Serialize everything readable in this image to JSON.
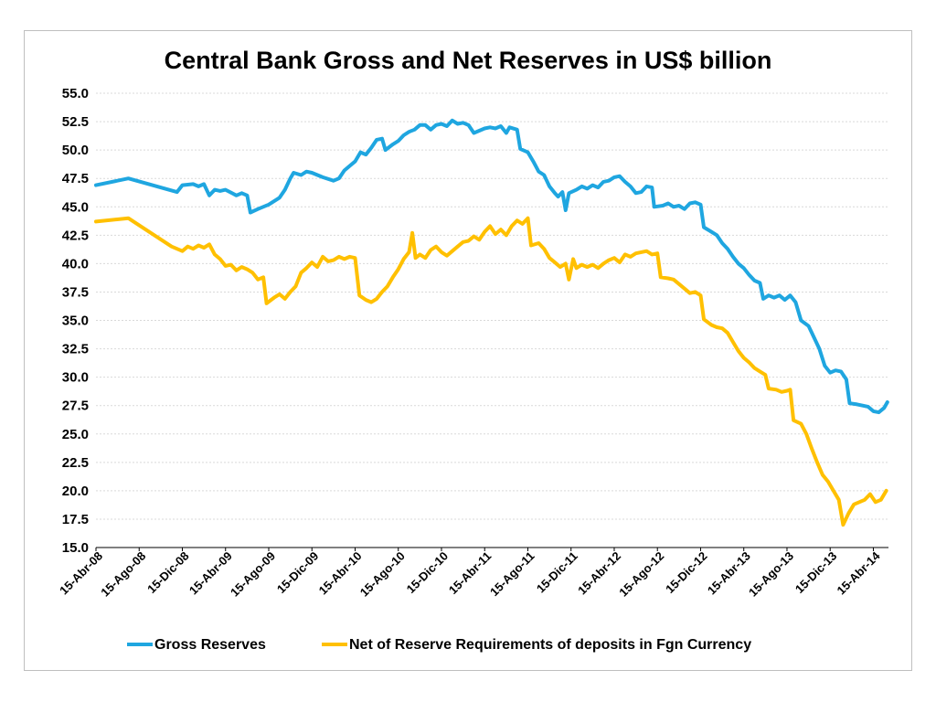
{
  "chart_data": {
    "type": "line",
    "title": "Central Bank Gross and Net Reserves in US$ billion",
    "xlabel": "",
    "ylabel": "",
    "ylim": [
      15.0,
      55.0
    ],
    "ytick_step": 2.5,
    "yticks": [
      "15.0",
      "17.5",
      "20.0",
      "22.5",
      "25.0",
      "27.5",
      "30.0",
      "32.5",
      "35.0",
      "37.5",
      "40.0",
      "42.5",
      "45.0",
      "47.5",
      "50.0",
      "52.5",
      "55.0"
    ],
    "xlim": [
      0,
      72
    ],
    "xticks": [
      {
        "x": 0,
        "label": "15-Abr-08"
      },
      {
        "x": 4,
        "label": "15-Ago-08"
      },
      {
        "x": 8,
        "label": "15-Dic-08"
      },
      {
        "x": 12,
        "label": "15-Abr-09"
      },
      {
        "x": 16,
        "label": "15-Ago-09"
      },
      {
        "x": 20,
        "label": "15-Dic-09"
      },
      {
        "x": 24,
        "label": "15-Abr-10"
      },
      {
        "x": 28,
        "label": "15-Ago-10"
      },
      {
        "x": 32,
        "label": "15-Dic-10"
      },
      {
        "x": 36,
        "label": "15-Abr-11"
      },
      {
        "x": 40,
        "label": "15-Ago-11"
      },
      {
        "x": 44,
        "label": "15-Dic-11"
      },
      {
        "x": 48,
        "label": "15-Abr-12"
      },
      {
        "x": 52,
        "label": "15-Ago-12"
      },
      {
        "x": 56,
        "label": "15-Dic-12"
      },
      {
        "x": 60,
        "label": "15-Abr-13"
      },
      {
        "x": 64,
        "label": "15-Ago-13"
      },
      {
        "x": 68,
        "label": "15-Dic-13"
      },
      {
        "x": 72,
        "label": "15-Abr-14"
      }
    ],
    "legend_position": "bottom",
    "grid": true,
    "series": [
      {
        "name": "Gross Reserves",
        "color": "#1FA6E0",
        "points": [
          [
            0,
            46.9
          ],
          [
            3,
            47.5
          ],
          [
            7.5,
            46.3
          ],
          [
            8,
            46.9
          ],
          [
            9,
            47.0
          ],
          [
            9.5,
            46.8
          ],
          [
            10,
            47.0
          ],
          [
            10.5,
            46.0
          ],
          [
            11,
            46.5
          ],
          [
            11.5,
            46.4
          ],
          [
            12,
            46.5
          ],
          [
            13,
            46.0
          ],
          [
            13.5,
            46.2
          ],
          [
            14,
            46.0
          ],
          [
            14.3,
            44.5
          ],
          [
            15,
            44.8
          ],
          [
            16,
            45.2
          ],
          [
            17,
            45.8
          ],
          [
            17.5,
            46.5
          ],
          [
            18,
            47.5
          ],
          [
            18.3,
            48.0
          ],
          [
            19,
            47.8
          ],
          [
            19.5,
            48.1
          ],
          [
            20,
            48.0
          ],
          [
            21,
            47.6
          ],
          [
            22,
            47.3
          ],
          [
            22.5,
            47.5
          ],
          [
            23,
            48.2
          ],
          [
            23.5,
            48.6
          ],
          [
            24,
            49.0
          ],
          [
            24.5,
            49.8
          ],
          [
            25,
            49.6
          ],
          [
            25.5,
            50.2
          ],
          [
            26,
            50.9
          ],
          [
            26.5,
            51.0
          ],
          [
            26.8,
            50.0
          ],
          [
            27.5,
            50.5
          ],
          [
            28,
            50.8
          ],
          [
            28.5,
            51.3
          ],
          [
            29,
            51.6
          ],
          [
            29.5,
            51.8
          ],
          [
            30,
            52.2
          ],
          [
            30.5,
            52.2
          ],
          [
            31,
            51.8
          ],
          [
            31.5,
            52.2
          ],
          [
            32,
            52.3
          ],
          [
            32.5,
            52.1
          ],
          [
            33,
            52.6
          ],
          [
            33.5,
            52.3
          ],
          [
            34,
            52.4
          ],
          [
            34.5,
            52.2
          ],
          [
            35,
            51.5
          ],
          [
            35.5,
            51.7
          ],
          [
            36,
            51.9
          ],
          [
            36.5,
            52.0
          ],
          [
            37,
            51.9
          ],
          [
            37.5,
            52.1
          ],
          [
            38,
            51.5
          ],
          [
            38.3,
            52.0
          ],
          [
            39,
            51.8
          ],
          [
            39.3,
            50.1
          ],
          [
            40,
            49.8
          ],
          [
            40.5,
            49.0
          ],
          [
            41,
            48.1
          ],
          [
            41.5,
            47.8
          ],
          [
            42,
            46.8
          ],
          [
            42.5,
            46.2
          ],
          [
            42.8,
            45.9
          ],
          [
            43.2,
            46.3
          ],
          [
            43.5,
            44.7
          ],
          [
            43.8,
            46.2
          ],
          [
            44.5,
            46.5
          ],
          [
            45,
            46.8
          ],
          [
            45.5,
            46.6
          ],
          [
            46,
            46.9
          ],
          [
            46.5,
            46.7
          ],
          [
            47,
            47.2
          ],
          [
            47.5,
            47.3
          ],
          [
            48,
            47.6
          ],
          [
            48.5,
            47.7
          ],
          [
            49,
            47.2
          ],
          [
            49.5,
            46.8
          ],
          [
            50,
            46.2
          ],
          [
            50.5,
            46.3
          ],
          [
            51,
            46.8
          ],
          [
            51.5,
            46.7
          ],
          [
            51.7,
            45.0
          ],
          [
            52.5,
            45.1
          ],
          [
            53,
            45.3
          ],
          [
            53.5,
            45.0
          ],
          [
            54,
            45.1
          ],
          [
            54.5,
            44.8
          ],
          [
            55,
            45.3
          ],
          [
            55.5,
            45.4
          ],
          [
            56,
            45.2
          ],
          [
            56.3,
            43.2
          ],
          [
            57,
            42.8
          ],
          [
            57.5,
            42.5
          ],
          [
            58,
            41.8
          ],
          [
            58.5,
            41.3
          ],
          [
            59,
            40.6
          ],
          [
            59.5,
            40.0
          ],
          [
            60,
            39.6
          ],
          [
            60.5,
            39.0
          ],
          [
            61,
            38.5
          ],
          [
            61.5,
            38.3
          ],
          [
            61.8,
            36.9
          ],
          [
            62.3,
            37.2
          ],
          [
            62.8,
            37.0
          ],
          [
            63.3,
            37.2
          ],
          [
            63.8,
            36.8
          ],
          [
            64.3,
            37.2
          ],
          [
            64.8,
            36.6
          ],
          [
            65.3,
            35.0
          ],
          [
            66,
            34.5
          ],
          [
            66.5,
            33.5
          ],
          [
            67,
            32.5
          ],
          [
            67.5,
            31.0
          ],
          [
            68,
            30.4
          ],
          [
            68.5,
            30.6
          ],
          [
            69,
            30.5
          ],
          [
            69.5,
            29.8
          ],
          [
            69.8,
            27.7
          ],
          [
            70.5,
            27.6
          ],
          [
            71,
            27.5
          ],
          [
            71.5,
            27.4
          ],
          [
            72,
            27.0
          ],
          [
            72.5,
            26.9
          ],
          [
            73,
            27.3
          ],
          [
            73.3,
            27.8
          ]
        ]
      },
      {
        "name": "Net of Reserve Requirements of deposits in Fgn Currency",
        "color": "#FFC000",
        "points": [
          [
            0,
            43.7
          ],
          [
            3,
            44.0
          ],
          [
            7,
            41.5
          ],
          [
            8,
            41.1
          ],
          [
            8.5,
            41.5
          ],
          [
            9,
            41.3
          ],
          [
            9.5,
            41.6
          ],
          [
            10,
            41.4
          ],
          [
            10.5,
            41.7
          ],
          [
            11,
            40.8
          ],
          [
            11.5,
            40.4
          ],
          [
            12,
            39.8
          ],
          [
            12.5,
            39.9
          ],
          [
            13,
            39.4
          ],
          [
            13.5,
            39.7
          ],
          [
            14,
            39.5
          ],
          [
            14.5,
            39.2
          ],
          [
            15,
            38.6
          ],
          [
            15.5,
            38.8
          ],
          [
            15.8,
            36.5
          ],
          [
            16.5,
            37.0
          ],
          [
            17,
            37.3
          ],
          [
            17.5,
            36.9
          ],
          [
            18,
            37.5
          ],
          [
            18.5,
            38.0
          ],
          [
            19,
            39.2
          ],
          [
            19.5,
            39.6
          ],
          [
            20,
            40.1
          ],
          [
            20.5,
            39.7
          ],
          [
            21,
            40.6
          ],
          [
            21.5,
            40.2
          ],
          [
            22,
            40.3
          ],
          [
            22.5,
            40.6
          ],
          [
            23,
            40.4
          ],
          [
            23.5,
            40.6
          ],
          [
            24,
            40.5
          ],
          [
            24.4,
            37.2
          ],
          [
            25,
            36.8
          ],
          [
            25.5,
            36.6
          ],
          [
            26,
            36.9
          ],
          [
            26.5,
            37.5
          ],
          [
            27,
            38.0
          ],
          [
            27.5,
            38.8
          ],
          [
            28,
            39.5
          ],
          [
            28.5,
            40.4
          ],
          [
            29,
            41.0
          ],
          [
            29.3,
            42.7
          ],
          [
            29.6,
            40.5
          ],
          [
            30,
            40.8
          ],
          [
            30.5,
            40.5
          ],
          [
            31,
            41.2
          ],
          [
            31.5,
            41.5
          ],
          [
            32,
            41.0
          ],
          [
            32.5,
            40.7
          ],
          [
            33,
            41.1
          ],
          [
            33.5,
            41.5
          ],
          [
            34,
            41.9
          ],
          [
            34.5,
            42.0
          ],
          [
            35,
            42.4
          ],
          [
            35.5,
            42.1
          ],
          [
            36,
            42.8
          ],
          [
            36.5,
            43.3
          ],
          [
            37,
            42.6
          ],
          [
            37.5,
            43.0
          ],
          [
            38,
            42.5
          ],
          [
            38.5,
            43.3
          ],
          [
            39,
            43.8
          ],
          [
            39.5,
            43.5
          ],
          [
            40,
            44.0
          ],
          [
            40.3,
            41.6
          ],
          [
            41,
            41.8
          ],
          [
            41.5,
            41.3
          ],
          [
            42,
            40.5
          ],
          [
            42.5,
            40.1
          ],
          [
            43,
            39.7
          ],
          [
            43.5,
            40.0
          ],
          [
            43.8,
            38.6
          ],
          [
            44.2,
            40.4
          ],
          [
            44.5,
            39.6
          ],
          [
            45,
            39.9
          ],
          [
            45.5,
            39.7
          ],
          [
            46,
            39.9
          ],
          [
            46.5,
            39.6
          ],
          [
            47,
            40.0
          ],
          [
            47.5,
            40.3
          ],
          [
            48,
            40.5
          ],
          [
            48.5,
            40.1
          ],
          [
            49,
            40.8
          ],
          [
            49.5,
            40.6
          ],
          [
            50,
            40.9
          ],
          [
            50.5,
            41.0
          ],
          [
            51,
            41.1
          ],
          [
            51.5,
            40.8
          ],
          [
            52,
            40.9
          ],
          [
            52.3,
            38.8
          ],
          [
            53,
            38.7
          ],
          [
            53.5,
            38.6
          ],
          [
            54,
            38.2
          ],
          [
            54.5,
            37.8
          ],
          [
            55,
            37.4
          ],
          [
            55.5,
            37.5
          ],
          [
            56,
            37.2
          ],
          [
            56.3,
            35.1
          ],
          [
            57,
            34.6
          ],
          [
            57.5,
            34.4
          ],
          [
            58,
            34.3
          ],
          [
            58.5,
            33.9
          ],
          [
            59,
            33.1
          ],
          [
            59.5,
            32.3
          ],
          [
            60,
            31.7
          ],
          [
            60.5,
            31.3
          ],
          [
            61,
            30.8
          ],
          [
            61.5,
            30.5
          ],
          [
            62,
            30.2
          ],
          [
            62.3,
            29.0
          ],
          [
            63,
            28.9
          ],
          [
            63.5,
            28.7
          ],
          [
            64,
            28.8
          ],
          [
            64.3,
            28.9
          ],
          [
            64.6,
            26.2
          ],
          [
            65.3,
            25.9
          ],
          [
            65.8,
            25.0
          ],
          [
            66.3,
            23.7
          ],
          [
            66.8,
            22.5
          ],
          [
            67.3,
            21.4
          ],
          [
            67.8,
            20.8
          ],
          [
            68.3,
            20.0
          ],
          [
            68.8,
            19.2
          ],
          [
            69.2,
            17.0
          ],
          [
            69.7,
            18.0
          ],
          [
            70.2,
            18.8
          ],
          [
            70.7,
            19.0
          ],
          [
            71.2,
            19.2
          ],
          [
            71.7,
            19.7
          ],
          [
            72.2,
            19.0
          ],
          [
            72.7,
            19.2
          ],
          [
            73.2,
            20.0
          ]
        ]
      }
    ]
  }
}
